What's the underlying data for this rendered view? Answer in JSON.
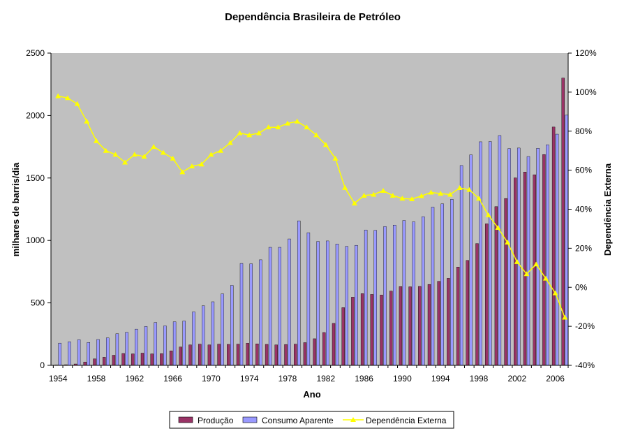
{
  "chart_data": {
    "type": "bar",
    "title": "Dependência Brasileira de Petróleo",
    "xlabel": "Ano",
    "ylabel": "milhares de barris/dia",
    "y2label": "Dependência Externa",
    "ylim": [
      0,
      2500
    ],
    "y2lim": [
      -40,
      120
    ],
    "yticks": [
      "0",
      "500",
      "1000",
      "1500",
      "2000",
      "2500"
    ],
    "y2ticks": [
      "-40%",
      "-20%",
      "0%",
      "20%",
      "40%",
      "60%",
      "80%",
      "100%",
      "120%"
    ],
    "xticks": [
      "1954",
      "1958",
      "1962",
      "1966",
      "1970",
      "1974",
      "1978",
      "1982",
      "1986",
      "1990",
      "1994",
      "1998",
      "2002",
      "2006"
    ],
    "categories": [
      1954,
      1955,
      1956,
      1957,
      1958,
      1959,
      1960,
      1961,
      1962,
      1963,
      1964,
      1965,
      1966,
      1967,
      1968,
      1969,
      1970,
      1971,
      1972,
      1973,
      1974,
      1975,
      1976,
      1977,
      1978,
      1979,
      1980,
      1981,
      1982,
      1983,
      1984,
      1985,
      1986,
      1987,
      1988,
      1989,
      1990,
      1991,
      1992,
      1993,
      1994,
      1995,
      1996,
      1997,
      1998,
      1999,
      2000,
      2001,
      2002,
      2003,
      2004,
      2005,
      2006,
      2007
    ],
    "series": [
      {
        "name": "Produção",
        "kind": "bar",
        "color": "#993366",
        "values": [
          3,
          5,
          11,
          27,
          52,
          65,
          81,
          95,
          92,
          98,
          92,
          94,
          116,
          147,
          164,
          170,
          164,
          170,
          168,
          170,
          177,
          172,
          168,
          164,
          167,
          170,
          182,
          213,
          263,
          336,
          462,
          546,
          574,
          568,
          563,
          595,
          631,
          629,
          632,
          648,
          673,
          697,
          787,
          840,
          975,
          1133,
          1271,
          1336,
          1501,
          1548,
          1526,
          1688,
          1908,
          2300
        ]
      },
      {
        "name": "Consumo Aparente",
        "kind": "bar",
        "color": "#9999ff",
        "values": [
          178,
          189,
          205,
          183,
          207,
          220,
          253,
          265,
          290,
          311,
          343,
          316,
          349,
          355,
          428,
          477,
          509,
          572,
          640,
          816,
          813,
          845,
          945,
          945,
          1012,
          1157,
          1062,
          992,
          996,
          972,
          952,
          961,
          1084,
          1081,
          1111,
          1123,
          1160,
          1149,
          1190,
          1267,
          1293,
          1329,
          1600,
          1685,
          1790,
          1792,
          1840,
          1735,
          1740,
          1672,
          1738,
          1766,
          1851,
          2003
        ]
      },
      {
        "name": "Dependência Externa",
        "kind": "line",
        "color": "#ffff00",
        "values": [
          98,
          97,
          94,
          85,
          75,
          70,
          68,
          64,
          68,
          67,
          72,
          69,
          66,
          59,
          62,
          63,
          68,
          70,
          74,
          79,
          78,
          79,
          82,
          82,
          84,
          85,
          82,
          78,
          73,
          66,
          51,
          43,
          47,
          47.5,
          49.5,
          47,
          45.5,
          45.2,
          46.8,
          48.6,
          48,
          47.5,
          50.9,
          50,
          45.5,
          37,
          30.5,
          23,
          13,
          6.8,
          11.8,
          4.5,
          -3,
          -15.5
        ]
      }
    ],
    "legend": {
      "position": "bottom",
      "entries": [
        "Produção",
        "Consumo Aparente",
        "Dependência Externa"
      ]
    }
  }
}
